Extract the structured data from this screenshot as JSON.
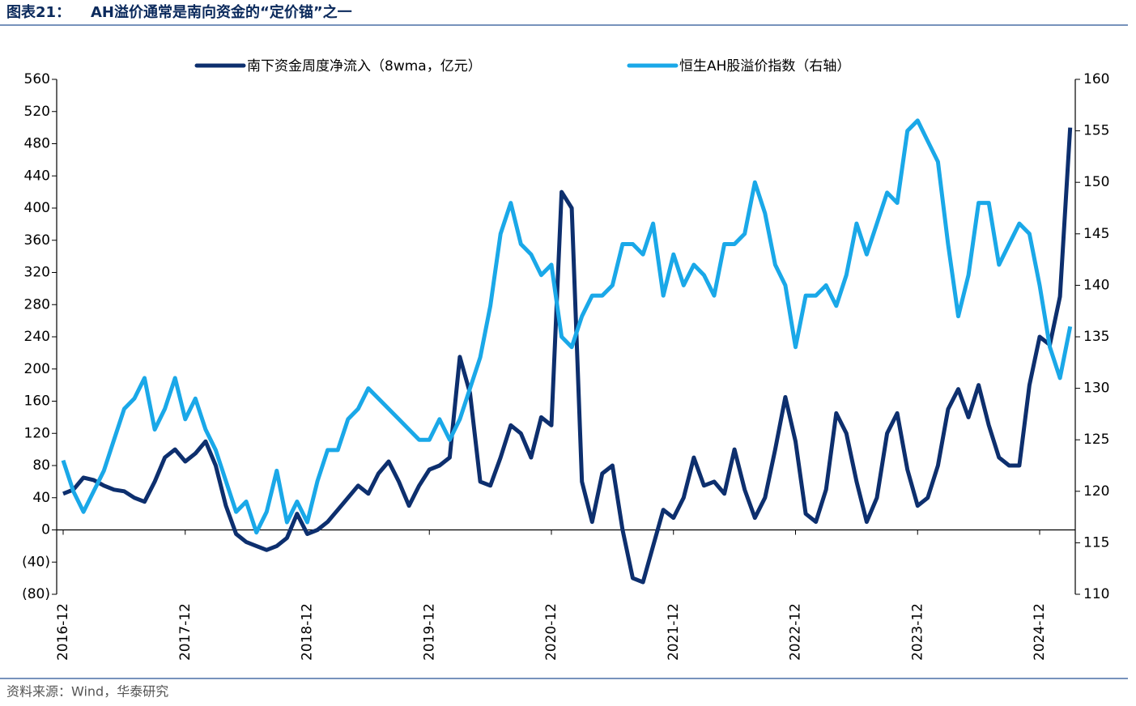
{
  "chart_data": {
    "type": "line",
    "label": "图表21：",
    "title": "AH溢价通常是南向资金的“定价锚”之一",
    "source": "资料来源：Wind，华泰研究",
    "x": [
      "2016-12",
      "2017-01",
      "2017-02",
      "2017-03",
      "2017-04",
      "2017-05",
      "2017-06",
      "2017-07",
      "2017-08",
      "2017-09",
      "2017-10",
      "2017-11",
      "2017-12",
      "2018-01",
      "2018-02",
      "2018-03",
      "2018-04",
      "2018-05",
      "2018-06",
      "2018-07",
      "2018-08",
      "2018-09",
      "2018-10",
      "2018-11",
      "2018-12",
      "2019-01",
      "2019-02",
      "2019-03",
      "2019-04",
      "2019-05",
      "2019-06",
      "2019-07",
      "2019-08",
      "2019-09",
      "2019-10",
      "2019-11",
      "2019-12",
      "2020-01",
      "2020-02",
      "2020-03",
      "2020-04",
      "2020-05",
      "2020-06",
      "2020-07",
      "2020-08",
      "2020-09",
      "2020-10",
      "2020-11",
      "2020-12",
      "2021-01",
      "2021-02",
      "2021-03",
      "2021-04",
      "2021-05",
      "2021-06",
      "2021-07",
      "2021-08",
      "2021-09",
      "2021-10",
      "2021-11",
      "2021-12",
      "2022-01",
      "2022-02",
      "2022-03",
      "2022-04",
      "2022-05",
      "2022-06",
      "2022-07",
      "2022-08",
      "2022-09",
      "2022-10",
      "2022-11",
      "2022-12",
      "2023-01",
      "2023-02",
      "2023-03",
      "2023-04",
      "2023-05",
      "2023-06",
      "2023-07",
      "2023-08",
      "2023-09",
      "2023-10",
      "2023-11",
      "2023-12",
      "2024-01",
      "2024-02",
      "2024-03",
      "2024-04",
      "2024-05",
      "2024-06",
      "2024-07",
      "2024-08",
      "2024-09",
      "2024-10",
      "2024-11",
      "2024-12",
      "2025-01",
      "2025-02",
      "2025-03"
    ],
    "series": [
      {
        "name": "南下资金周度净流入（8wma，亿元）",
        "color": "#0d2f6e",
        "axis": "y",
        "values": [
          45,
          50,
          65,
          62,
          55,
          50,
          48,
          40,
          35,
          60,
          90,
          100,
          85,
          95,
          110,
          80,
          30,
          -5,
          -15,
          -20,
          -25,
          -20,
          -10,
          20,
          -5,
          0,
          10,
          25,
          40,
          55,
          45,
          70,
          85,
          60,
          30,
          55,
          75,
          80,
          90,
          215,
          170,
          60,
          55,
          90,
          130,
          120,
          90,
          140,
          130,
          420,
          400,
          60,
          10,
          70,
          80,
          0,
          -60,
          -65,
          -20,
          25,
          15,
          40,
          90,
          55,
          60,
          45,
          100,
          50,
          15,
          40,
          100,
          165,
          110,
          20,
          10,
          50,
          145,
          120,
          60,
          10,
          40,
          120,
          145,
          75,
          30,
          40,
          80,
          150,
          175,
          140,
          180,
          130,
          90,
          80,
          80,
          180,
          240,
          230,
          290,
          500
        ]
      },
      {
        "name": "恒生AH股溢价指数（右轴）",
        "color": "#1aa8e8",
        "axis": "y2",
        "values": [
          123,
          120,
          118,
          120,
          122,
          125,
          128,
          129,
          131,
          126,
          128,
          131,
          127,
          129,
          126,
          124,
          121,
          118,
          119,
          116,
          118,
          122,
          117,
          119,
          117,
          121,
          124,
          124,
          127,
          128,
          130,
          129,
          128,
          127,
          126,
          125,
          125,
          127,
          125,
          127,
          130,
          133,
          138,
          145,
          148,
          144,
          143,
          141,
          142,
          135,
          134,
          137,
          139,
          139,
          140,
          144,
          144,
          143,
          146,
          139,
          143,
          140,
          142,
          141,
          139,
          144,
          144,
          145,
          150,
          147,
          142,
          140,
          134,
          139,
          139,
          140,
          138,
          141,
          146,
          143,
          146,
          149,
          148,
          155,
          156,
          154,
          152,
          144,
          137,
          141,
          148,
          148,
          142,
          144,
          146,
          145,
          140,
          134,
          131,
          136
        ]
      }
    ],
    "xticks": [
      "2016-12",
      "2017-12",
      "2018-12",
      "2019-12",
      "2020-12",
      "2021-12",
      "2022-12",
      "2023-12",
      "2024-12"
    ],
    "ylim": [
      -80,
      560
    ],
    "yticks": [
      {
        "value": -80,
        "label": "(80)"
      },
      {
        "value": -40,
        "label": "(40)"
      },
      0,
      40,
      80,
      120,
      160,
      200,
      240,
      280,
      320,
      360,
      400,
      440,
      480,
      520,
      560
    ],
    "y2lim": [
      110,
      160
    ],
    "y2ticks": [
      110,
      115,
      120,
      125,
      130,
      135,
      140,
      145,
      150,
      155,
      160
    ],
    "legend": "top"
  }
}
